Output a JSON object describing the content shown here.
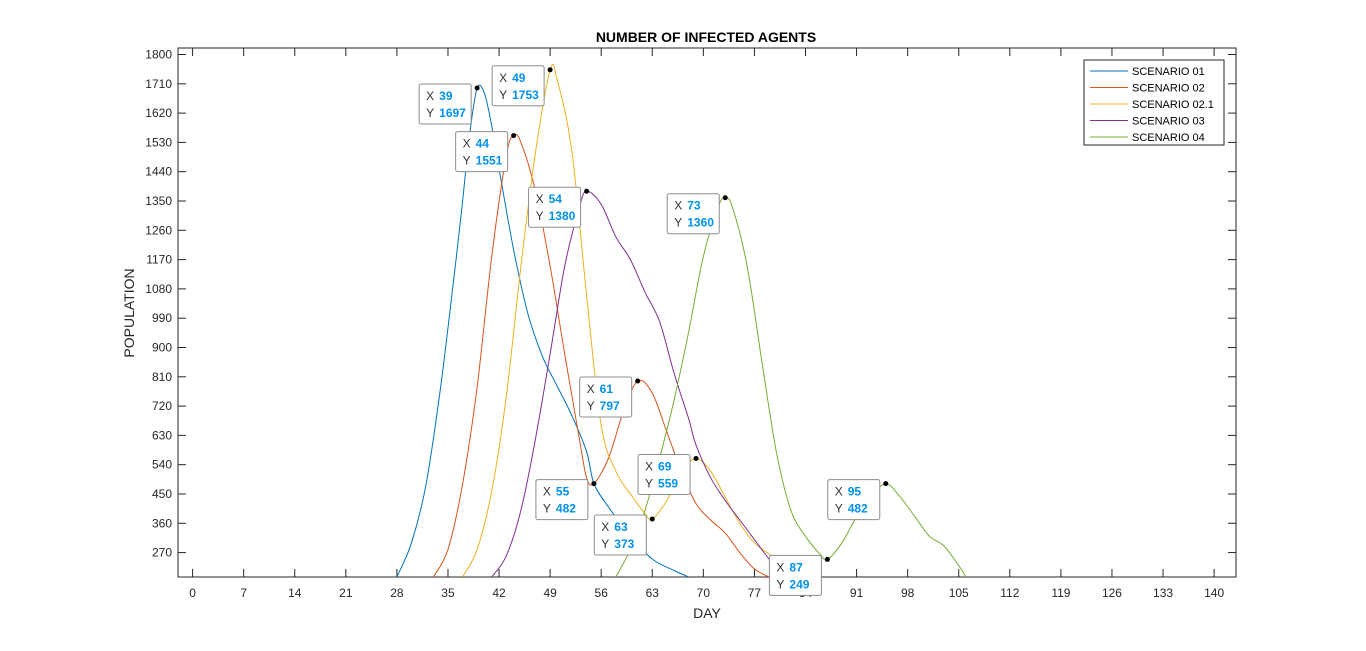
{
  "chart_data": {
    "type": "line",
    "title": "NUMBER OF INFECTED AGENTS",
    "xlabel": "DAY",
    "ylabel": "POPULATION",
    "xlim": [
      -2,
      143
    ],
    "ylim": [
      195,
      1820
    ],
    "xticks": [
      0,
      7,
      14,
      21,
      28,
      35,
      42,
      49,
      56,
      63,
      70,
      77,
      84,
      91,
      98,
      105,
      112,
      119,
      126,
      133,
      140
    ],
    "yticks": [
      270,
      360,
      450,
      540,
      630,
      720,
      810,
      900,
      990,
      1080,
      1170,
      1260,
      1350,
      1440,
      1530,
      1620,
      1710,
      1800
    ],
    "grid": false,
    "legend": "top-right",
    "series": [
      {
        "name": "SCENARIO 01",
        "color": "#0072bd",
        "points": [
          [
            28,
            195
          ],
          [
            30,
            300
          ],
          [
            32,
            480
          ],
          [
            34,
            780
          ],
          [
            36,
            1150
          ],
          [
            37,
            1350
          ],
          [
            38,
            1560
          ],
          [
            39,
            1697
          ],
          [
            40,
            1680
          ],
          [
            41,
            1580
          ],
          [
            42,
            1450
          ],
          [
            44,
            1200
          ],
          [
            46,
            1000
          ],
          [
            48,
            870
          ],
          [
            50,
            780
          ],
          [
            52,
            690
          ],
          [
            54,
            580
          ],
          [
            55,
            482
          ],
          [
            57,
            410
          ],
          [
            60,
            320
          ],
          [
            63,
            250
          ],
          [
            66,
            215
          ],
          [
            68,
            195
          ]
        ]
      },
      {
        "name": "SCENARIO 02",
        "color": "#d95319",
        "points": [
          [
            33,
            195
          ],
          [
            35,
            280
          ],
          [
            37,
            480
          ],
          [
            39,
            780
          ],
          [
            41,
            1180
          ],
          [
            43,
            1490
          ],
          [
            44,
            1551
          ],
          [
            45,
            1530
          ],
          [
            47,
            1380
          ],
          [
            49,
            1150
          ],
          [
            51,
            880
          ],
          [
            53,
            620
          ],
          [
            54,
            500
          ],
          [
            55,
            482
          ],
          [
            57,
            560
          ],
          [
            59,
            700
          ],
          [
            61,
            797
          ],
          [
            63,
            760
          ],
          [
            65,
            640
          ],
          [
            67,
            520
          ],
          [
            69,
            420
          ],
          [
            71,
            370
          ],
          [
            73,
            330
          ],
          [
            75,
            270
          ],
          [
            77,
            220
          ],
          [
            79,
            195
          ]
        ]
      },
      {
        "name": "SCENARIO 02.1",
        "color": "#edb120",
        "points": [
          [
            37,
            195
          ],
          [
            39,
            280
          ],
          [
            41,
            460
          ],
          [
            43,
            750
          ],
          [
            45,
            1150
          ],
          [
            47,
            1500
          ],
          [
            49,
            1753
          ],
          [
            50,
            1720
          ],
          [
            52,
            1500
          ],
          [
            54,
            1060
          ],
          [
            56,
            660
          ],
          [
            58,
            520
          ],
          [
            60,
            450
          ],
          [
            62,
            390
          ],
          [
            63,
            373
          ],
          [
            65,
            430
          ],
          [
            67,
            520
          ],
          [
            69,
            559
          ],
          [
            71,
            520
          ],
          [
            73,
            440
          ],
          [
            75,
            360
          ],
          [
            77,
            300
          ],
          [
            80,
            250
          ],
          [
            82,
            210
          ],
          [
            83,
            195
          ]
        ]
      },
      {
        "name": "SCENARIO 03",
        "color": "#7e2f8e",
        "points": [
          [
            41,
            195
          ],
          [
            43,
            260
          ],
          [
            45,
            400
          ],
          [
            47,
            620
          ],
          [
            49,
            880
          ],
          [
            51,
            1150
          ],
          [
            53,
            1330
          ],
          [
            54,
            1380
          ],
          [
            56,
            1340
          ],
          [
            58,
            1240
          ],
          [
            60,
            1170
          ],
          [
            62,
            1070
          ],
          [
            64,
            980
          ],
          [
            66,
            820
          ],
          [
            68,
            680
          ],
          [
            69,
            600
          ],
          [
            71,
            500
          ],
          [
            73,
            430
          ],
          [
            75,
            370
          ],
          [
            77,
            310
          ],
          [
            79,
            250
          ],
          [
            81,
            195
          ]
        ]
      },
      {
        "name": "SCENARIO 04",
        "color": "#77ac30",
        "points": [
          [
            58,
            195
          ],
          [
            60,
            280
          ],
          [
            62,
            400
          ],
          [
            64,
            560
          ],
          [
            66,
            740
          ],
          [
            68,
            950
          ],
          [
            70,
            1180
          ],
          [
            72,
            1330
          ],
          [
            73,
            1360
          ],
          [
            74,
            1330
          ],
          [
            76,
            1150
          ],
          [
            78,
            860
          ],
          [
            80,
            580
          ],
          [
            82,
            400
          ],
          [
            84,
            320
          ],
          [
            86,
            265
          ],
          [
            87,
            249
          ],
          [
            89,
            300
          ],
          [
            91,
            380
          ],
          [
            93,
            440
          ],
          [
            95,
            482
          ],
          [
            97,
            440
          ],
          [
            99,
            380
          ],
          [
            101,
            320
          ],
          [
            103,
            290
          ],
          [
            105,
            230
          ],
          [
            106,
            195
          ]
        ]
      }
    ],
    "datatips": [
      {
        "series": 0,
        "x": 39,
        "y": 1697
      },
      {
        "series": 1,
        "x": 44,
        "y": 1551
      },
      {
        "series": 2,
        "x": 49,
        "y": 1753
      },
      {
        "series": 3,
        "x": 54,
        "y": 1380
      },
      {
        "series": 1,
        "x": 55,
        "y": 482
      },
      {
        "series": 1,
        "x": 61,
        "y": 797
      },
      {
        "series": 2,
        "x": 63,
        "y": 373
      },
      {
        "series": 2,
        "x": 69,
        "y": 559
      },
      {
        "series": 4,
        "x": 73,
        "y": 1360
      },
      {
        "series": 4,
        "x": 87,
        "y": 249
      },
      {
        "series": 4,
        "x": 95,
        "y": 482
      }
    ],
    "datatip_labels": {
      "x": "X",
      "y": "Y"
    }
  }
}
